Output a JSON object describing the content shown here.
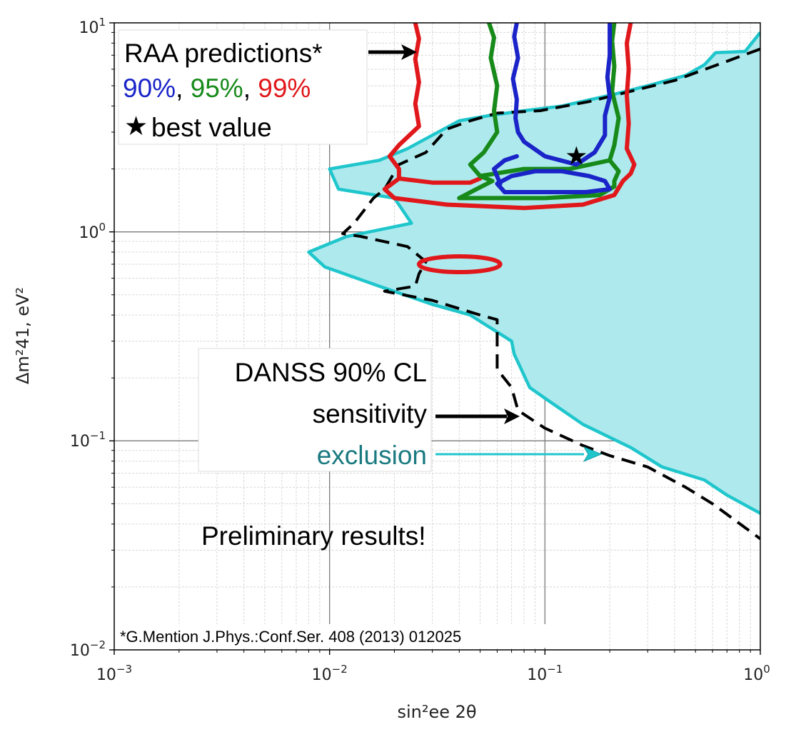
{
  "chart_data": {
    "type": "line",
    "xscale": "log",
    "yscale": "log",
    "xlim": [
      0.001,
      1
    ],
    "ylim": [
      0.01,
      10
    ],
    "grid": true,
    "xlabel": "sin²ee 2θ",
    "ylabel": "Δm²41, eV²",
    "x_ticks": [
      {
        "base": "10",
        "exp": "−3"
      },
      {
        "base": "10",
        "exp": "−2"
      },
      {
        "base": "10",
        "exp": "−1"
      },
      {
        "base": "10",
        "exp": "0"
      }
    ],
    "y_ticks": [
      {
        "base": "10",
        "exp": "−2"
      },
      {
        "base": "10",
        "exp": "−1"
      },
      {
        "base": "10",
        "exp": "0"
      },
      {
        "base": "10",
        "exp": "1"
      }
    ],
    "colors": {
      "exclusion_fill": "#aeeaed",
      "exclusion_line": "#1fc6cc",
      "sensitivity": "#000000",
      "raa_90": "#1a24c8",
      "raa_95": "#178a1a",
      "raa_99": "#e0181b",
      "exclusion_text": "#1a7a80"
    },
    "series": {
      "exclusion": {
        "points": [
          [
            1.0,
            9.0
          ],
          [
            0.85,
            7.3
          ],
          [
            0.62,
            7.2
          ],
          [
            0.55,
            6.3
          ],
          [
            0.45,
            5.6
          ],
          [
            0.3,
            5.0
          ],
          [
            0.2,
            4.5
          ],
          [
            0.12,
            4.0
          ],
          [
            0.08,
            3.8
          ],
          [
            0.055,
            3.6
          ],
          [
            0.04,
            3.4
          ],
          [
            0.03,
            2.9
          ],
          [
            0.023,
            2.5
          ],
          [
            0.017,
            2.2
          ],
          [
            0.01,
            2.0
          ],
          [
            0.011,
            1.6
          ],
          [
            0.02,
            1.45
          ],
          [
            0.024,
            1.1
          ],
          [
            0.012,
            0.95
          ],
          [
            0.008,
            0.8
          ],
          [
            0.0095,
            0.68
          ],
          [
            0.017,
            0.55
          ],
          [
            0.03,
            0.45
          ],
          [
            0.045,
            0.4
          ],
          [
            0.07,
            0.3
          ],
          [
            0.072,
            0.26
          ],
          [
            0.085,
            0.18
          ],
          [
            0.1,
            0.16
          ],
          [
            0.15,
            0.12
          ],
          [
            0.25,
            0.093
          ],
          [
            0.35,
            0.075
          ],
          [
            0.55,
            0.065
          ],
          [
            0.7,
            0.055
          ],
          [
            1.0,
            0.045
          ]
        ]
      },
      "sensitivity": {
        "points": [
          [
            1.0,
            7.5
          ],
          [
            0.4,
            5.3
          ],
          [
            0.16,
            4.2
          ],
          [
            0.095,
            3.8
          ],
          [
            0.06,
            3.7
          ],
          [
            0.045,
            3.4
          ],
          [
            0.035,
            3.1
          ],
          [
            0.028,
            2.4
          ],
          [
            0.021,
            2.1
          ],
          [
            0.018,
            1.6
          ],
          [
            0.016,
            1.45
          ],
          [
            0.013,
            1.1
          ],
          [
            0.0115,
            0.98
          ],
          [
            0.014,
            0.95
          ],
          [
            0.023,
            0.85
          ],
          [
            0.028,
            0.72
          ],
          [
            0.026,
            0.63
          ],
          [
            0.025,
            0.55
          ],
          [
            0.018,
            0.52
          ],
          [
            0.03,
            0.47
          ],
          [
            0.05,
            0.4
          ],
          [
            0.06,
            0.38
          ],
          [
            0.06,
            0.3
          ],
          [
            0.06,
            0.22
          ],
          [
            0.07,
            0.18
          ],
          [
            0.075,
            0.14
          ],
          [
            0.1,
            0.115
          ],
          [
            0.15,
            0.095
          ],
          [
            0.2,
            0.085
          ],
          [
            0.3,
            0.075
          ],
          [
            0.45,
            0.06
          ],
          [
            0.6,
            0.05
          ],
          [
            1.0,
            0.034
          ]
        ]
      },
      "raa_90": {
        "upper": [
          [
            0.074,
            10
          ],
          [
            0.072,
            8.6
          ],
          [
            0.075,
            6.8
          ],
          [
            0.071,
            5.4
          ],
          [
            0.074,
            4.3
          ],
          [
            0.073,
            3.5
          ],
          [
            0.075,
            3.0
          ],
          [
            0.08,
            2.7
          ],
          [
            0.1,
            2.3
          ],
          [
            0.14,
            2.1
          ],
          [
            0.17,
            2.4
          ],
          [
            0.19,
            2.9
          ],
          [
            0.19,
            3.6
          ],
          [
            0.2,
            4.4
          ],
          [
            0.195,
            5.5
          ],
          [
            0.2,
            7.0
          ],
          [
            0.2,
            10
          ]
        ],
        "lobe": [
          [
            0.065,
            1.55
          ],
          [
            0.1,
            1.55
          ],
          [
            0.155,
            1.55
          ],
          [
            0.2,
            1.6
          ],
          [
            0.19,
            1.75
          ],
          [
            0.16,
            1.85
          ],
          [
            0.12,
            1.95
          ],
          [
            0.09,
            1.95
          ],
          [
            0.07,
            1.85
          ],
          [
            0.06,
            1.7
          ],
          [
            0.065,
            1.55
          ]
        ],
        "left_edge": [
          [
            0.062,
            1.7
          ],
          [
            0.058,
            2.0
          ],
          [
            0.065,
            2.2
          ],
          [
            0.074,
            2.3
          ]
        ]
      },
      "raa_95": {
        "left": [
          [
            0.055,
            10
          ],
          [
            0.058,
            8.5
          ],
          [
            0.056,
            6.8
          ],
          [
            0.06,
            5.0
          ],
          [
            0.058,
            3.8
          ],
          [
            0.06,
            3.0
          ],
          [
            0.052,
            2.4
          ],
          [
            0.045,
            2.1
          ],
          [
            0.05,
            1.85
          ],
          [
            0.057,
            1.75
          ],
          [
            0.048,
            1.6
          ],
          [
            0.04,
            1.45
          ]
        ],
        "bottom": [
          [
            0.04,
            1.45
          ],
          [
            0.1,
            1.45
          ],
          [
            0.18,
            1.5
          ],
          [
            0.21,
            1.65
          ]
        ],
        "right": [
          [
            0.21,
            10
          ],
          [
            0.205,
            8.2
          ],
          [
            0.21,
            6.2
          ],
          [
            0.205,
            4.7
          ],
          [
            0.22,
            3.5
          ],
          [
            0.21,
            2.6
          ],
          [
            0.2,
            2.2
          ],
          [
            0.22,
            1.95
          ],
          [
            0.21,
            1.75
          ],
          [
            0.21,
            1.65
          ]
        ],
        "waist": [
          [
            0.05,
            1.85
          ],
          [
            0.08,
            2.0
          ],
          [
            0.13,
            2.0
          ],
          [
            0.2,
            2.2
          ]
        ]
      },
      "raa_99": {
        "left": [
          [
            0.025,
            10
          ],
          [
            0.026,
            8.4
          ],
          [
            0.025,
            6.7
          ],
          [
            0.026,
            5.2
          ],
          [
            0.025,
            4.1
          ],
          [
            0.026,
            3.2
          ],
          [
            0.021,
            2.6
          ],
          [
            0.019,
            2.3
          ],
          [
            0.021,
            2.0
          ],
          [
            0.021,
            1.8
          ],
          [
            0.018,
            1.6
          ],
          [
            0.02,
            1.45
          ],
          [
            0.035,
            1.35
          ]
        ],
        "bottom": [
          [
            0.035,
            1.35
          ],
          [
            0.08,
            1.3
          ],
          [
            0.15,
            1.35
          ],
          [
            0.21,
            1.5
          ],
          [
            0.23,
            1.75
          ]
        ],
        "right": [
          [
            0.25,
            10
          ],
          [
            0.24,
            8.0
          ],
          [
            0.245,
            6.0
          ],
          [
            0.24,
            4.5
          ],
          [
            0.245,
            3.3
          ],
          [
            0.24,
            2.5
          ],
          [
            0.26,
            2.1
          ],
          [
            0.25,
            1.9
          ],
          [
            0.23,
            1.75
          ]
        ],
        "inner": [
          [
            0.021,
            1.8
          ],
          [
            0.03,
            1.72
          ],
          [
            0.045,
            1.72
          ],
          [
            0.05,
            1.8
          ]
        ],
        "island": {
          "x_range": [
            0.026,
            0.062
          ],
          "y_center": 0.7
        }
      }
    },
    "best_value": {
      "x": 0.14,
      "y": 2.3
    }
  },
  "annotations": {
    "raa_line1": "RAA predictions*",
    "raa_90": "90%",
    "raa_95": "95%",
    "raa_99": "99%",
    "comma": ",",
    "best_value": "best value",
    "star_glyph": "★",
    "danss_line1": "DANSS 90% CL",
    "danss_line2": "sensitivity",
    "danss_line3": "exclusion",
    "preliminary": "Preliminary results!",
    "citation": "*G.Mention J.Phys.:Conf.Ser. 408 (2013) 012025"
  }
}
